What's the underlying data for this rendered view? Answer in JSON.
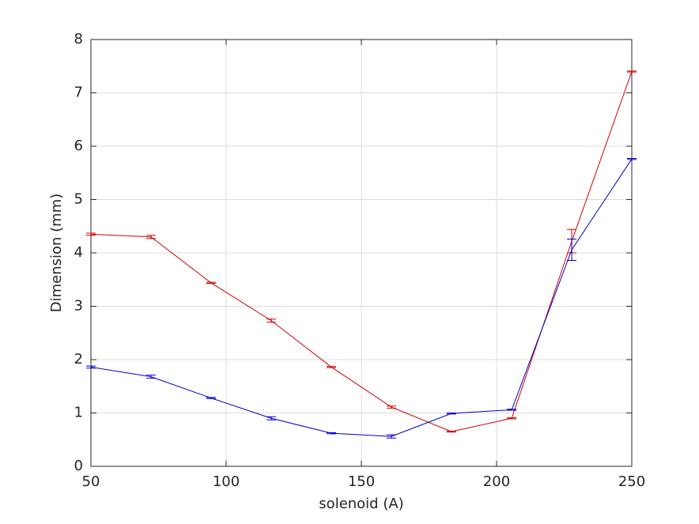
{
  "chart_data": {
    "type": "errorbar-line",
    "xlabel": "solenoid (A)",
    "ylabel": "Dimension (mm)",
    "xlim": [
      50,
      250
    ],
    "xticks": [
      50,
      100,
      150,
      200,
      250
    ],
    "ylim": [
      0,
      8
    ],
    "yticks": [
      0,
      1,
      2,
      3,
      4,
      5,
      6,
      7,
      8
    ],
    "grid": true,
    "x": [
      50,
      72.2,
      94.4,
      116.7,
      138.9,
      161.1,
      183.3,
      205.6,
      227.8,
      250
    ],
    "series": [
      {
        "color": "#d00000",
        "values": [
          4.35,
          4.3,
          3.44,
          2.73,
          1.86,
          1.11,
          0.65,
          0.9,
          4.22,
          7.4
        ],
        "errors": [
          0.02,
          0.03,
          0.01,
          0.03,
          0.01,
          0.02,
          0.01,
          0.01,
          0.22,
          0.01
        ]
      },
      {
        "color": "#0000c8",
        "values": [
          1.86,
          1.68,
          1.28,
          0.9,
          0.62,
          0.56,
          0.99,
          1.06,
          4.06,
          5.76
        ],
        "errors": [
          0.02,
          0.03,
          0.01,
          0.03,
          0.01,
          0.03,
          0.01,
          0.01,
          0.2,
          0.01
        ]
      }
    ]
  }
}
